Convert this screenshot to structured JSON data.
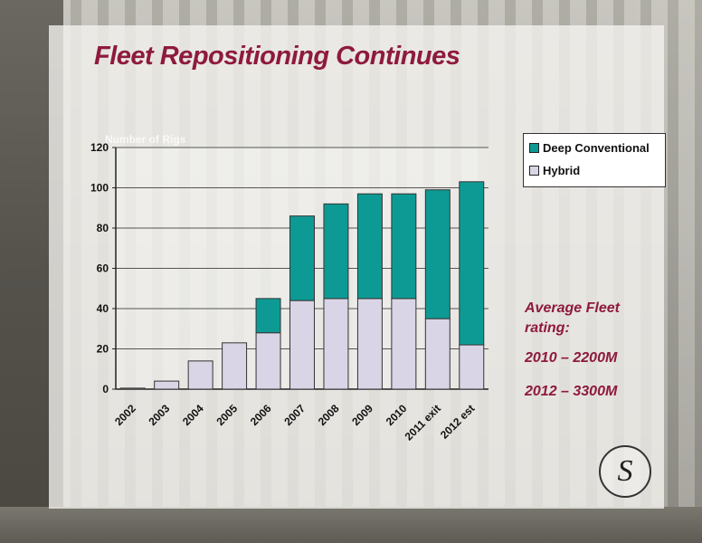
{
  "slide": {
    "title": "Fleet Repositioning Continues",
    "y_axis_label": "Number of Rigs",
    "callout_heading": "Average Fleet rating:",
    "callout_lines": [
      "2010 – 2200M",
      "2012 – 3300M"
    ],
    "logo_glyph": "S",
    "colors": {
      "title": "#8e1a3e",
      "deep": "#0e9a94",
      "hybrid": "#d9d5e6"
    }
  },
  "chart_data": {
    "type": "bar",
    "stacked": true,
    "categories": [
      "2002",
      "2003",
      "2004",
      "2005",
      "2006",
      "2007",
      "2008",
      "2009",
      "2010",
      "2011 exit",
      "2012 est"
    ],
    "series": [
      {
        "name": "Hybrid",
        "values": [
          0.5,
          4,
          14,
          23,
          28,
          44,
          45,
          45,
          45,
          35,
          22
        ]
      },
      {
        "name": "Deep Conventional",
        "values": [
          0,
          0,
          0,
          0,
          17,
          42,
          47,
          52,
          52,
          64,
          81
        ]
      }
    ],
    "yticks": [
      0,
      20,
      40,
      60,
      80,
      100,
      120
    ],
    "ylim": [
      0,
      120
    ],
    "ylabel": "Number of Rigs",
    "legend": "top-right",
    "grid": true
  }
}
